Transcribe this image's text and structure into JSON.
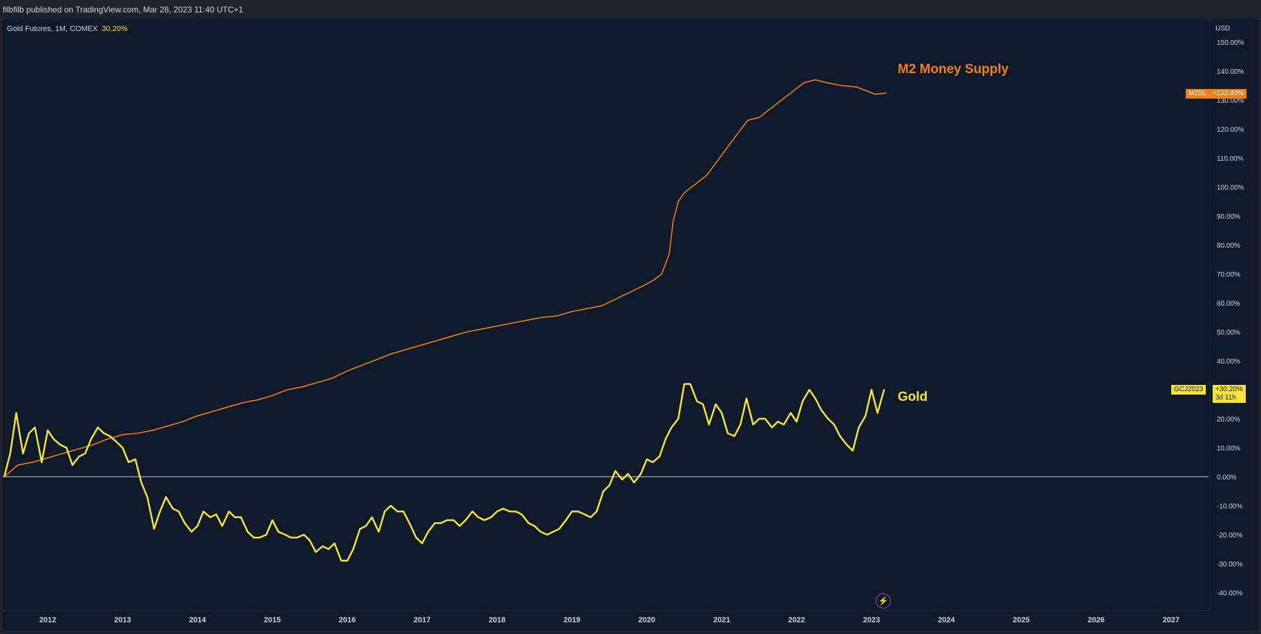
{
  "header": {
    "publisher_line": "filbfilb published on TradingView.com, Mar 28, 2023 11:40 UTC+1"
  },
  "legend": {
    "symbol": "Gold Futures, 1M, COMEX",
    "change": "30.20%"
  },
  "labels": {
    "m2": "M2 Money Supply",
    "gold": "Gold"
  },
  "price_tags": {
    "m2_symbol": "M2SL",
    "m2_value": "+132.40%",
    "gold_symbol": "GCJ2023",
    "gold_value": "+30.20%",
    "gold_countdown": "3d 11h"
  },
  "icons": {
    "event": "lightning-icon"
  },
  "colors": {
    "background": "#0f1a2b",
    "gold": "#f9e53a",
    "m2": "#f57f17",
    "zero_line": "#d1d4dc"
  },
  "chart_data": {
    "type": "line",
    "axis_unit": "USD",
    "y_ticks": [
      "150.00%",
      "140.00%",
      "130.00%",
      "120.00%",
      "110.00%",
      "100.00%",
      "90.00%",
      "80.00%",
      "70.00%",
      "60.00%",
      "50.00%",
      "40.00%",
      "30.00%",
      "20.00%",
      "10.00%",
      "0.00%",
      "-10.00%",
      "-20.00%",
      "-30.00%",
      "-40.00%"
    ],
    "ylim": [
      -44,
      155
    ],
    "xlim": [
      2011.4,
      2027.5
    ],
    "x_ticks": [
      "2012",
      "2013",
      "2014",
      "2015",
      "2016",
      "2017",
      "2018",
      "2019",
      "2020",
      "2021",
      "2022",
      "2023",
      "2024",
      "2025",
      "2026",
      "2027"
    ],
    "series": [
      {
        "name": "M2 Money Supply",
        "color": "#f57f17",
        "points": [
          [
            2011.42,
            0
          ],
          [
            2011.6,
            4
          ],
          [
            2011.8,
            5
          ],
          [
            2012.0,
            6.5
          ],
          [
            2012.2,
            8
          ],
          [
            2012.4,
            9.5
          ],
          [
            2012.6,
            11
          ],
          [
            2012.8,
            13
          ],
          [
            2013.0,
            14.5
          ],
          [
            2013.2,
            15
          ],
          [
            2013.4,
            16
          ],
          [
            2013.6,
            17.5
          ],
          [
            2013.8,
            19
          ],
          [
            2014.0,
            21
          ],
          [
            2014.2,
            22.5
          ],
          [
            2014.4,
            24
          ],
          [
            2014.6,
            25.5
          ],
          [
            2014.8,
            26.5
          ],
          [
            2015.0,
            28
          ],
          [
            2015.2,
            30
          ],
          [
            2015.4,
            31
          ],
          [
            2015.6,
            32.5
          ],
          [
            2015.8,
            34
          ],
          [
            2016.0,
            36.5
          ],
          [
            2016.2,
            38.5
          ],
          [
            2016.4,
            40.5
          ],
          [
            2016.6,
            42.5
          ],
          [
            2016.8,
            44
          ],
          [
            2017.0,
            45.5
          ],
          [
            2017.2,
            47
          ],
          [
            2017.4,
            48.5
          ],
          [
            2017.6,
            50
          ],
          [
            2017.8,
            51
          ],
          [
            2018.0,
            52
          ],
          [
            2018.2,
            53
          ],
          [
            2018.4,
            54
          ],
          [
            2018.6,
            55
          ],
          [
            2018.8,
            55.5
          ],
          [
            2019.0,
            57
          ],
          [
            2019.2,
            58
          ],
          [
            2019.4,
            59
          ],
          [
            2019.6,
            61.5
          ],
          [
            2019.8,
            64
          ],
          [
            2020.0,
            66.5
          ],
          [
            2020.1,
            68
          ],
          [
            2020.2,
            70
          ],
          [
            2020.3,
            77
          ],
          [
            2020.35,
            88
          ],
          [
            2020.42,
            95
          ],
          [
            2020.5,
            98
          ],
          [
            2020.6,
            100
          ],
          [
            2020.8,
            104
          ],
          [
            2021.0,
            111
          ],
          [
            2021.2,
            118
          ],
          [
            2021.35,
            123
          ],
          [
            2021.5,
            124
          ],
          [
            2021.65,
            127
          ],
          [
            2021.8,
            130
          ],
          [
            2021.95,
            133
          ],
          [
            2022.1,
            136
          ],
          [
            2022.25,
            137
          ],
          [
            2022.4,
            136
          ],
          [
            2022.6,
            135
          ],
          [
            2022.8,
            134.5
          ],
          [
            2022.95,
            133
          ],
          [
            2023.05,
            132
          ],
          [
            2023.2,
            132.4
          ]
        ]
      },
      {
        "name": "Gold",
        "color": "#f9e53a",
        "points": [
          [
            2011.42,
            0
          ],
          [
            2011.5,
            8
          ],
          [
            2011.58,
            22
          ],
          [
            2011.67,
            8
          ],
          [
            2011.75,
            15
          ],
          [
            2011.83,
            17
          ],
          [
            2011.92,
            5
          ],
          [
            2012.0,
            16
          ],
          [
            2012.08,
            13
          ],
          [
            2012.17,
            11
          ],
          [
            2012.25,
            10
          ],
          [
            2012.33,
            4
          ],
          [
            2012.42,
            7
          ],
          [
            2012.5,
            8
          ],
          [
            2012.58,
            13
          ],
          [
            2012.67,
            17
          ],
          [
            2012.75,
            15
          ],
          [
            2012.83,
            14
          ],
          [
            2012.92,
            12
          ],
          [
            2013.0,
            10
          ],
          [
            2013.08,
            5
          ],
          [
            2013.17,
            6
          ],
          [
            2013.25,
            -2
          ],
          [
            2013.33,
            -7
          ],
          [
            2013.42,
            -18
          ],
          [
            2013.5,
            -12
          ],
          [
            2013.58,
            -7
          ],
          [
            2013.67,
            -11
          ],
          [
            2013.75,
            -12
          ],
          [
            2013.83,
            -16
          ],
          [
            2013.92,
            -19
          ],
          [
            2014.0,
            -17
          ],
          [
            2014.08,
            -12
          ],
          [
            2014.17,
            -14
          ],
          [
            2014.25,
            -13
          ],
          [
            2014.33,
            -17
          ],
          [
            2014.42,
            -12
          ],
          [
            2014.5,
            -14
          ],
          [
            2014.58,
            -14
          ],
          [
            2014.67,
            -19
          ],
          [
            2014.75,
            -21
          ],
          [
            2014.83,
            -21
          ],
          [
            2014.92,
            -20
          ],
          [
            2015.0,
            -15
          ],
          [
            2015.08,
            -19
          ],
          [
            2015.17,
            -20
          ],
          [
            2015.25,
            -21
          ],
          [
            2015.33,
            -21
          ],
          [
            2015.42,
            -20
          ],
          [
            2015.5,
            -22
          ],
          [
            2015.58,
            -26
          ],
          [
            2015.67,
            -24
          ],
          [
            2015.75,
            -25
          ],
          [
            2015.83,
            -23
          ],
          [
            2015.92,
            -29
          ],
          [
            2016.0,
            -29
          ],
          [
            2016.08,
            -25
          ],
          [
            2016.17,
            -18
          ],
          [
            2016.25,
            -17
          ],
          [
            2016.33,
            -14
          ],
          [
            2016.42,
            -19
          ],
          [
            2016.5,
            -12
          ],
          [
            2016.58,
            -10
          ],
          [
            2016.67,
            -12
          ],
          [
            2016.75,
            -12
          ],
          [
            2016.83,
            -16
          ],
          [
            2016.92,
            -21
          ],
          [
            2017.0,
            -23
          ],
          [
            2017.08,
            -19
          ],
          [
            2017.17,
            -16
          ],
          [
            2017.25,
            -16
          ],
          [
            2017.33,
            -15
          ],
          [
            2017.42,
            -15
          ],
          [
            2017.5,
            -17
          ],
          [
            2017.58,
            -15
          ],
          [
            2017.67,
            -12
          ],
          [
            2017.75,
            -14
          ],
          [
            2017.83,
            -15
          ],
          [
            2017.92,
            -14
          ],
          [
            2018.0,
            -12
          ],
          [
            2018.08,
            -11
          ],
          [
            2018.17,
            -12
          ],
          [
            2018.25,
            -12
          ],
          [
            2018.33,
            -13
          ],
          [
            2018.42,
            -16
          ],
          [
            2018.5,
            -17
          ],
          [
            2018.58,
            -19
          ],
          [
            2018.67,
            -20
          ],
          [
            2018.75,
            -19
          ],
          [
            2018.83,
            -18
          ],
          [
            2018.92,
            -15
          ],
          [
            2019.0,
            -12
          ],
          [
            2019.08,
            -12
          ],
          [
            2019.17,
            -13
          ],
          [
            2019.25,
            -14
          ],
          [
            2019.33,
            -12
          ],
          [
            2019.42,
            -5
          ],
          [
            2019.5,
            -3
          ],
          [
            2019.58,
            2
          ],
          [
            2019.67,
            -1
          ],
          [
            2019.75,
            1
          ],
          [
            2019.83,
            -2
          ],
          [
            2019.92,
            1
          ],
          [
            2020.0,
            6
          ],
          [
            2020.08,
            5
          ],
          [
            2020.17,
            7
          ],
          [
            2020.25,
            13
          ],
          [
            2020.33,
            17
          ],
          [
            2020.42,
            20
          ],
          [
            2020.5,
            32
          ],
          [
            2020.58,
            32
          ],
          [
            2020.67,
            26
          ],
          [
            2020.75,
            25
          ],
          [
            2020.83,
            18
          ],
          [
            2020.92,
            25
          ],
          [
            2021.0,
            22
          ],
          [
            2021.08,
            15
          ],
          [
            2021.17,
            14
          ],
          [
            2021.25,
            18
          ],
          [
            2021.33,
            27
          ],
          [
            2021.42,
            18
          ],
          [
            2021.5,
            20
          ],
          [
            2021.58,
            20
          ],
          [
            2021.67,
            17
          ],
          [
            2021.75,
            19
          ],
          [
            2021.83,
            18
          ],
          [
            2021.92,
            22
          ],
          [
            2022.0,
            19
          ],
          [
            2022.08,
            26
          ],
          [
            2022.17,
            30
          ],
          [
            2022.25,
            27
          ],
          [
            2022.33,
            23
          ],
          [
            2022.42,
            20
          ],
          [
            2022.5,
            18
          ],
          [
            2022.58,
            14
          ],
          [
            2022.67,
            11
          ],
          [
            2022.75,
            9
          ],
          [
            2022.83,
            17
          ],
          [
            2022.92,
            21
          ],
          [
            2023.0,
            30
          ],
          [
            2023.08,
            22
          ],
          [
            2023.17,
            30.2
          ]
        ]
      }
    ],
    "zero_line": 0
  }
}
